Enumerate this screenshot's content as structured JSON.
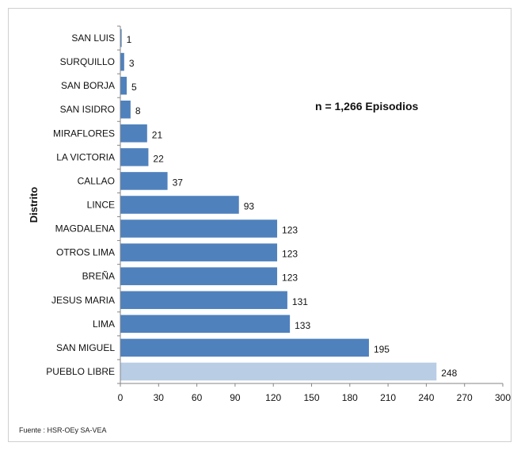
{
  "chart_data": {
    "type": "bar",
    "orientation": "horizontal",
    "categories": [
      "SAN LUIS",
      "SURQUILLO",
      "SAN BORJA",
      "SAN ISIDRO",
      "MIRAFLORES",
      "LA VICTORIA",
      "CALLAO",
      "LINCE",
      "MAGDALENA",
      "OTROS LIMA",
      "BREÑA",
      "JESUS MARIA",
      "LIMA",
      "SAN MIGUEL",
      "PUEBLO LIBRE"
    ],
    "values": [
      1,
      3,
      5,
      8,
      21,
      22,
      37,
      93,
      123,
      123,
      123,
      131,
      133,
      195,
      248
    ],
    "data_labels": [
      "1",
      "3",
      "5",
      "8",
      "21",
      "22",
      "37",
      "93",
      "123",
      "123",
      "123",
      "131",
      "133",
      "195",
      "248"
    ],
    "highlight_index": 14,
    "ylabel": "Distrito",
    "xlabel": "",
    "xlim": [
      0,
      300
    ],
    "xticks": [
      "0",
      "30",
      "60",
      "90",
      "120",
      "150",
      "180",
      "210",
      "240",
      "270",
      "300"
    ],
    "annotation": "n  = 1,266  Episodios",
    "grid": false,
    "colors": {
      "bar": "#4f81bd",
      "highlight": "#b9cde5",
      "axis": "#868686"
    }
  },
  "source": "Fuente : HSR-OEy SA-VEA"
}
